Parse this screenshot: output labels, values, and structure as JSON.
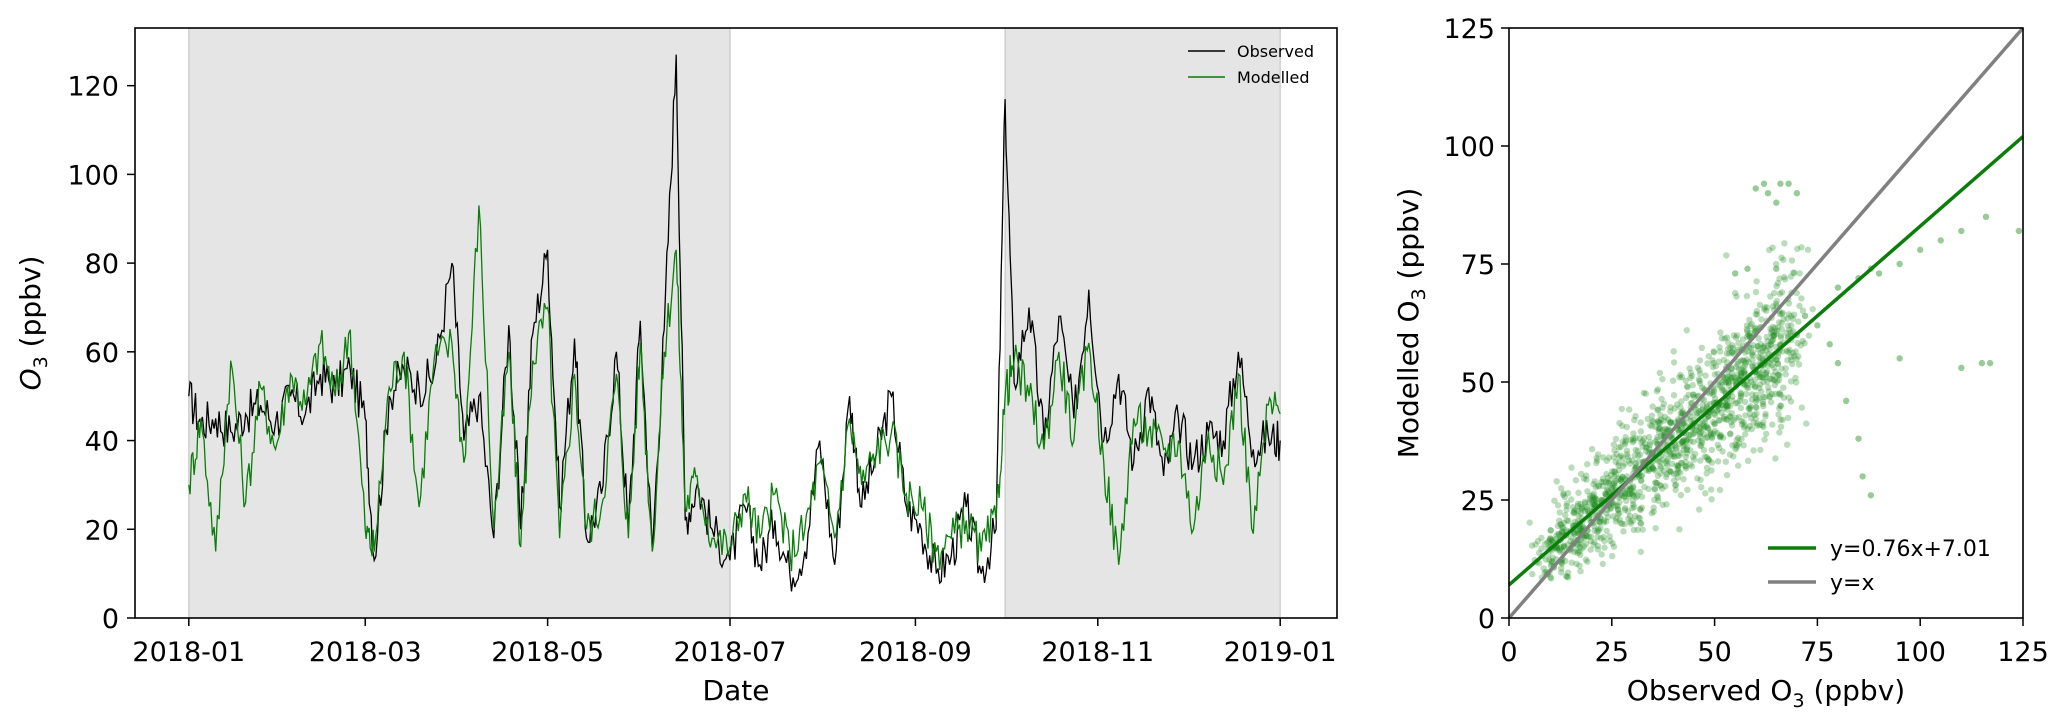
{
  "chart_data": [
    {
      "type": "line",
      "xlabel": "Date",
      "ylabel": "O3 (ppbv)",
      "ylabel_main": "O",
      "ylabel_sub": "3",
      "ylabel_unit": " (ppbv)",
      "xlim": [
        "2017-12-14",
        "2019-01-20"
      ],
      "ylim": [
        0,
        133
      ],
      "x_ticks": [
        "2018-01",
        "2018-03",
        "2018-05",
        "2018-07",
        "2018-09",
        "2018-11",
        "2019-01"
      ],
      "y_ticks": [
        0,
        20,
        40,
        60,
        80,
        100,
        120
      ],
      "shaded_spans": [
        [
          "2018-01-01",
          "2018-07-01"
        ],
        [
          "2018-10-01",
          "2019-01-01"
        ]
      ],
      "legend_position": "top-right",
      "series": [
        {
          "name": "Observed",
          "color": "#000000",
          "points": [
            [
              "2018-01-01",
              50
            ],
            [
              "2018-01-05",
              44
            ],
            [
              "2018-01-10",
              45
            ],
            [
              "2018-01-15",
              42
            ],
            [
              "2018-01-20",
              46
            ],
            [
              "2018-01-25",
              48
            ],
            [
              "2018-01-30",
              44
            ],
            [
              "2018-02-04",
              50
            ],
            [
              "2018-02-09",
              46
            ],
            [
              "2018-02-14",
              55
            ],
            [
              "2018-02-19",
              52
            ],
            [
              "2018-02-24",
              56
            ],
            [
              "2018-03-01",
              45
            ],
            [
              "2018-03-04",
              13
            ],
            [
              "2018-03-09",
              50
            ],
            [
              "2018-03-14",
              56
            ],
            [
              "2018-03-19",
              52
            ],
            [
              "2018-03-24",
              55
            ],
            [
              "2018-03-30",
              80
            ],
            [
              "2018-04-03",
              40
            ],
            [
              "2018-04-08",
              50
            ],
            [
              "2018-04-13",
              18
            ],
            [
              "2018-04-18",
              66
            ],
            [
              "2018-04-22",
              20
            ],
            [
              "2018-04-26",
              64
            ],
            [
              "2018-05-01",
              83
            ],
            [
              "2018-05-05",
              25
            ],
            [
              "2018-05-10",
              63
            ],
            [
              "2018-05-14",
              18
            ],
            [
              "2018-05-19",
              28
            ],
            [
              "2018-05-24",
              60
            ],
            [
              "2018-05-28",
              20
            ],
            [
              "2018-06-01",
              67
            ],
            [
              "2018-06-05",
              15
            ],
            [
              "2018-06-09",
              65
            ],
            [
              "2018-06-13",
              127
            ],
            [
              "2018-06-16",
              22
            ],
            [
              "2018-06-20",
              30
            ],
            [
              "2018-06-25",
              20
            ],
            [
              "2018-07-01",
              13
            ],
            [
              "2018-07-06",
              25
            ],
            [
              "2018-07-11",
              12
            ],
            [
              "2018-07-16",
              22
            ],
            [
              "2018-07-21",
              10
            ],
            [
              "2018-07-26",
              15
            ],
            [
              "2018-07-31",
              40
            ],
            [
              "2018-08-05",
              12
            ],
            [
              "2018-08-10",
              50
            ],
            [
              "2018-08-14",
              25
            ],
            [
              "2018-08-19",
              37
            ],
            [
              "2018-08-24",
              50
            ],
            [
              "2018-08-29",
              25
            ],
            [
              "2018-09-03",
              20
            ],
            [
              "2018-09-08",
              10
            ],
            [
              "2018-09-13",
              14
            ],
            [
              "2018-09-18",
              25
            ],
            [
              "2018-09-23",
              10
            ],
            [
              "2018-09-28",
              20
            ],
            [
              "2018-10-01",
              117
            ],
            [
              "2018-10-04",
              53
            ],
            [
              "2018-10-09",
              70
            ],
            [
              "2018-10-14",
              40
            ],
            [
              "2018-10-19",
              68
            ],
            [
              "2018-10-24",
              45
            ],
            [
              "2018-10-29",
              74
            ],
            [
              "2018-11-03",
              40
            ],
            [
              "2018-11-08",
              55
            ],
            [
              "2018-11-13",
              35
            ],
            [
              "2018-11-18",
              52
            ],
            [
              "2018-11-23",
              32
            ],
            [
              "2018-11-28",
              45
            ],
            [
              "2018-12-03",
              35
            ],
            [
              "2018-12-08",
              42
            ],
            [
              "2018-12-13",
              40
            ],
            [
              "2018-12-18",
              60
            ],
            [
              "2018-12-23",
              38
            ],
            [
              "2018-12-28",
              41
            ],
            [
              "2019-01-01",
              40
            ]
          ]
        },
        {
          "name": "Modelled",
          "color": "#0a7d0a",
          "points": [
            [
              "2018-01-01",
              30
            ],
            [
              "2018-01-05",
              45
            ],
            [
              "2018-01-10",
              15
            ],
            [
              "2018-01-15",
              58
            ],
            [
              "2018-01-20",
              26
            ],
            [
              "2018-01-25",
              52
            ],
            [
              "2018-01-30",
              38
            ],
            [
              "2018-02-04",
              55
            ],
            [
              "2018-02-09",
              48
            ],
            [
              "2018-02-14",
              62
            ],
            [
              "2018-02-19",
              50
            ],
            [
              "2018-02-24",
              65
            ],
            [
              "2018-03-01",
              20
            ],
            [
              "2018-03-04",
              15
            ],
            [
              "2018-03-09",
              52
            ],
            [
              "2018-03-14",
              60
            ],
            [
              "2018-03-19",
              25
            ],
            [
              "2018-03-24",
              58
            ],
            [
              "2018-03-30",
              62
            ],
            [
              "2018-04-03",
              35
            ],
            [
              "2018-04-08",
              93
            ],
            [
              "2018-04-13",
              20
            ],
            [
              "2018-04-18",
              60
            ],
            [
              "2018-04-22",
              16
            ],
            [
              "2018-04-26",
              58
            ],
            [
              "2018-05-01",
              70
            ],
            [
              "2018-05-05",
              18
            ],
            [
              "2018-05-10",
              55
            ],
            [
              "2018-05-14",
              20
            ],
            [
              "2018-05-19",
              25
            ],
            [
              "2018-05-24",
              55
            ],
            [
              "2018-05-28",
              18
            ],
            [
              "2018-06-01",
              62
            ],
            [
              "2018-06-05",
              15
            ],
            [
              "2018-06-09",
              60
            ],
            [
              "2018-06-13",
              83
            ],
            [
              "2018-06-16",
              25
            ],
            [
              "2018-06-20",
              32
            ],
            [
              "2018-06-25",
              18
            ],
            [
              "2018-07-01",
              16
            ],
            [
              "2018-07-06",
              28
            ],
            [
              "2018-07-11",
              18
            ],
            [
              "2018-07-16",
              28
            ],
            [
              "2018-07-21",
              15
            ],
            [
              "2018-07-26",
              20
            ],
            [
              "2018-07-31",
              35
            ],
            [
              "2018-08-05",
              18
            ],
            [
              "2018-08-10",
              45
            ],
            [
              "2018-08-14",
              30
            ],
            [
              "2018-08-19",
              38
            ],
            [
              "2018-08-24",
              42
            ],
            [
              "2018-08-29",
              28
            ],
            [
              "2018-09-03",
              25
            ],
            [
              "2018-09-08",
              15
            ],
            [
              "2018-09-13",
              18
            ],
            [
              "2018-09-18",
              22
            ],
            [
              "2018-09-23",
              15
            ],
            [
              "2018-09-28",
              22
            ],
            [
              "2018-10-01",
              50
            ],
            [
              "2018-10-04",
              58
            ],
            [
              "2018-10-09",
              50
            ],
            [
              "2018-10-14",
              38
            ],
            [
              "2018-10-19",
              60
            ],
            [
              "2018-10-24",
              40
            ],
            [
              "2018-10-29",
              62
            ],
            [
              "2018-11-03",
              35
            ],
            [
              "2018-11-08",
              12
            ],
            [
              "2018-11-13",
              45
            ],
            [
              "2018-11-18",
              42
            ],
            [
              "2018-11-23",
              38
            ],
            [
              "2018-11-28",
              40
            ],
            [
              "2018-12-03",
              20
            ],
            [
              "2018-12-08",
              42
            ],
            [
              "2018-12-13",
              30
            ],
            [
              "2018-12-18",
              55
            ],
            [
              "2018-12-23",
              19
            ],
            [
              "2018-12-28",
              48
            ],
            [
              "2019-01-01",
              46
            ]
          ]
        }
      ]
    },
    {
      "type": "scatter",
      "xlabel": "Observed O3 (ppbv)",
      "xlabel_main": "Observed O",
      "xlabel_sub": "3",
      "xlabel_unit": " (ppbv)",
      "ylabel": "Modelled O3 (ppbv)",
      "ylabel_main": "Modelled O",
      "ylabel_sub": "3",
      "ylabel_unit": " (ppbv)",
      "xlim": [
        0,
        125
      ],
      "ylim": [
        0,
        125
      ],
      "x_ticks": [
        0,
        25,
        50,
        75,
        100,
        125
      ],
      "y_ticks": [
        0,
        25,
        50,
        75,
        100,
        125
      ],
      "legend_position": "bottom-right",
      "point_color": "#1a8c1a",
      "lines": [
        {
          "name": "y=0.76x+7.01",
          "slope": 0.76,
          "intercept": 7.01,
          "color": "#0a7d0a"
        },
        {
          "name": "y=x",
          "slope": 1,
          "intercept": 0,
          "color": "#808080"
        }
      ],
      "cluster": {
        "x_range": [
          8,
          70
        ],
        "y_mean_slope": 0.76,
        "y_mean_intercept": 7.01,
        "spread": 6,
        "count": 1400
      },
      "outliers": [
        [
          60,
          91
        ],
        [
          62,
          92
        ],
        [
          63,
          90
        ],
        [
          65,
          88
        ],
        [
          66,
          92
        ],
        [
          68,
          92
        ],
        [
          70,
          90
        ],
        [
          72,
          64
        ],
        [
          75,
          62
        ],
        [
          78,
          58
        ],
        [
          80,
          54
        ],
        [
          82,
          46
        ],
        [
          85,
          38
        ],
        [
          86,
          30
        ],
        [
          88,
          26
        ],
        [
          80,
          70
        ],
        [
          85,
          72
        ],
        [
          88,
          74
        ],
        [
          90,
          73
        ],
        [
          95,
          75
        ],
        [
          100,
          78
        ],
        [
          105,
          80
        ],
        [
          110,
          82
        ],
        [
          116,
          85
        ],
        [
          124,
          82
        ],
        [
          115,
          54
        ],
        [
          117,
          54
        ],
        [
          110,
          53
        ],
        [
          95,
          55
        ],
        [
          55,
          73
        ],
        [
          58,
          74
        ],
        [
          65,
          74
        ],
        [
          70,
          60
        ]
      ]
    }
  ]
}
